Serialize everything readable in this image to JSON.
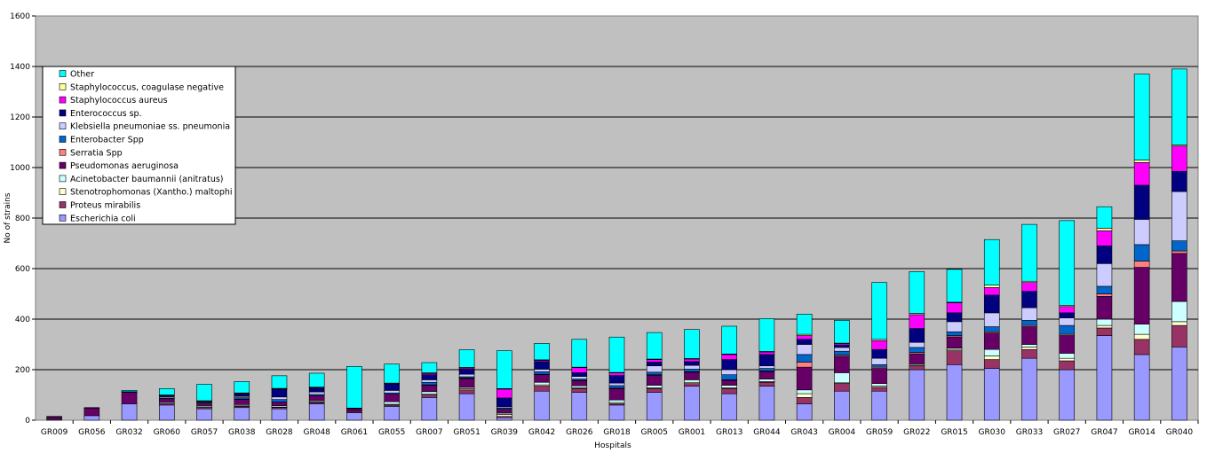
{
  "chart_data": {
    "type": "bar",
    "stacked": true,
    "xlabel": "Hospitals",
    "ylabel": "No of strains",
    "ylim": [
      0,
      1600
    ],
    "yticks": [
      0,
      200,
      400,
      600,
      800,
      1000,
      1200,
      1400,
      1600
    ],
    "grid": "horizontal",
    "legend_position": "left",
    "plot_background": "#c0c0c0",
    "categories": [
      "GR009",
      "GR056",
      "GR032",
      "GR060",
      "GR057",
      "GR038",
      "GR028",
      "GR048",
      "GR061",
      "GR055",
      "GR007",
      "GR051",
      "GR039",
      "GR042",
      "GR026",
      "GR018",
      "GR005",
      "GR001",
      "GR013",
      "GR044",
      "GR043",
      "GR004",
      "GR059",
      "GR022",
      "GR015",
      "GR030",
      "GR033",
      "GR027",
      "GR047",
      "GR014",
      "GR040"
    ],
    "series": [
      {
        "name": "Escherichia coli",
        "color": "#9999ff",
        "values": [
          3,
          18,
          65,
          60,
          45,
          50,
          45,
          65,
          30,
          55,
          90,
          105,
          10,
          115,
          110,
          60,
          110,
          135,
          105,
          135,
          65,
          115,
          115,
          200,
          220,
          205,
          245,
          200,
          335,
          260,
          290
        ]
      },
      {
        "name": "Proteus mirabilis",
        "color": "#993366",
        "values": [
          0,
          0,
          0,
          5,
          5,
          5,
          5,
          5,
          5,
          5,
          10,
          15,
          5,
          20,
          15,
          5,
          15,
          10,
          20,
          15,
          25,
          30,
          15,
          15,
          55,
          35,
          35,
          35,
          30,
          60,
          85
        ]
      },
      {
        "name": "Stenotrophomonas (Xantho.) maltophi",
        "color": "#ffffcc",
        "values": [
          0,
          0,
          0,
          0,
          3,
          2,
          2,
          2,
          0,
          3,
          3,
          5,
          8,
          5,
          3,
          5,
          3,
          5,
          3,
          3,
          15,
          3,
          5,
          3,
          5,
          15,
          10,
          10,
          10,
          20,
          15
        ]
      },
      {
        "name": "Acinetobacter baumannii (anitratus)",
        "color": "#ccffff",
        "values": [
          0,
          0,
          0,
          5,
          5,
          5,
          5,
          5,
          0,
          10,
          10,
          5,
          5,
          10,
          8,
          10,
          10,
          10,
          10,
          10,
          15,
          40,
          10,
          5,
          5,
          25,
          10,
          20,
          25,
          40,
          80
        ]
      },
      {
        "name": "Pseudomonas aeruginosa",
        "color": "#660066",
        "values": [
          10,
          30,
          45,
          15,
          10,
          20,
          15,
          20,
          10,
          30,
          25,
          35,
          15,
          30,
          20,
          45,
          40,
          30,
          20,
          30,
          90,
          65,
          60,
          40,
          45,
          65,
          70,
          70,
          90,
          225,
          190
        ]
      },
      {
        "name": "Serratia Spp",
        "color": "#ff8080",
        "values": [
          0,
          0,
          0,
          0,
          0,
          2,
          0,
          0,
          0,
          0,
          2,
          2,
          0,
          2,
          2,
          2,
          2,
          2,
          2,
          2,
          20,
          5,
          5,
          5,
          5,
          5,
          5,
          5,
          10,
          25,
          10
        ]
      },
      {
        "name": "Enterobacter Spp",
        "color": "#0066cc",
        "values": [
          0,
          0,
          0,
          3,
          3,
          5,
          10,
          5,
          0,
          5,
          10,
          5,
          5,
          10,
          5,
          10,
          10,
          10,
          20,
          10,
          30,
          15,
          10,
          20,
          15,
          20,
          20,
          35,
          30,
          65,
          40
        ]
      },
      {
        "name": "Klebsiella pneumoniae ss. pneumonia",
        "color": "#ccccff",
        "values": [
          0,
          0,
          0,
          5,
          3,
          5,
          10,
          10,
          0,
          10,
          10,
          10,
          5,
          10,
          10,
          10,
          25,
          15,
          20,
          10,
          40,
          15,
          25,
          20,
          40,
          55,
          50,
          30,
          90,
          100,
          195
        ]
      },
      {
        "name": "Enterococcus sp.",
        "color": "#000080",
        "values": [
          2,
          2,
          3,
          5,
          3,
          10,
          30,
          15,
          3,
          25,
          20,
          20,
          35,
          30,
          15,
          30,
          15,
          15,
          40,
          45,
          20,
          10,
          35,
          55,
          35,
          70,
          65,
          20,
          70,
          135,
          80
        ]
      },
      {
        "name": "Staphylococcus aureus",
        "color": "#ff00ff",
        "values": [
          0,
          0,
          0,
          0,
          0,
          2,
          2,
          2,
          0,
          2,
          5,
          5,
          35,
          5,
          20,
          10,
          10,
          10,
          20,
          10,
          15,
          5,
          35,
          55,
          40,
          30,
          35,
          25,
          60,
          90,
          100
        ]
      },
      {
        "name": "Staphylococcus, coagulase negative",
        "color": "#ffff99",
        "values": [
          0,
          0,
          0,
          2,
          0,
          2,
          2,
          2,
          0,
          2,
          3,
          2,
          2,
          2,
          2,
          2,
          2,
          2,
          2,
          2,
          5,
          2,
          5,
          5,
          2,
          10,
          5,
          5,
          10,
          10,
          5
        ]
      },
      {
        "name": "Other",
        "color": "#00ffff",
        "values": [
          0,
          0,
          5,
          25,
          65,
          45,
          50,
          55,
          165,
          75,
          40,
          70,
          150,
          65,
          110,
          140,
          105,
          115,
          110,
          130,
          80,
          90,
          225,
          165,
          130,
          180,
          225,
          335,
          85,
          340,
          300
        ]
      }
    ]
  }
}
